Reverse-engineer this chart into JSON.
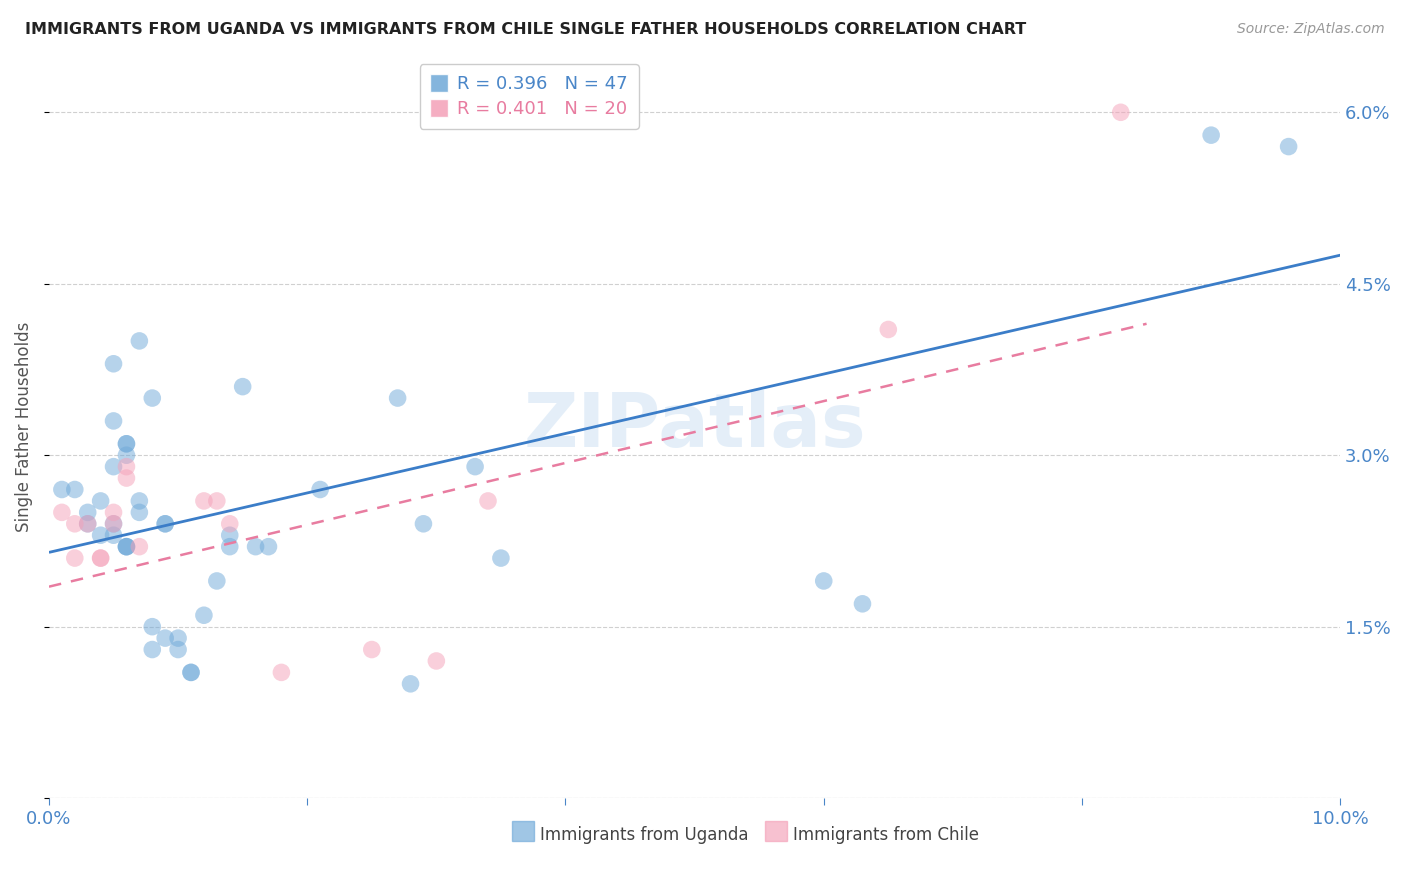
{
  "title": "IMMIGRANTS FROM UGANDA VS IMMIGRANTS FROM CHILE SINGLE FATHER HOUSEHOLDS CORRELATION CHART",
  "source": "Source: ZipAtlas.com",
  "ylabel": "Single Father Households",
  "xlim": [
    0.0,
    0.1
  ],
  "ylim": [
    0.0,
    0.065
  ],
  "xticks": [
    0.0,
    0.02,
    0.04,
    0.06,
    0.08,
    0.1
  ],
  "yticks": [
    0.0,
    0.015,
    0.03,
    0.045,
    0.06
  ],
  "watermark": "ZIPatlas",
  "uganda_color": "#6ea8d8",
  "chile_color": "#f4a0b8",
  "uganda_scatter": [
    [
      0.001,
      0.027
    ],
    [
      0.002,
      0.027
    ],
    [
      0.003,
      0.024
    ],
    [
      0.003,
      0.025
    ],
    [
      0.004,
      0.026
    ],
    [
      0.004,
      0.023
    ],
    [
      0.005,
      0.023
    ],
    [
      0.005,
      0.024
    ],
    [
      0.005,
      0.029
    ],
    [
      0.005,
      0.033
    ],
    [
      0.005,
      0.038
    ],
    [
      0.006,
      0.022
    ],
    [
      0.006,
      0.022
    ],
    [
      0.006,
      0.022
    ],
    [
      0.006,
      0.03
    ],
    [
      0.006,
      0.031
    ],
    [
      0.006,
      0.031
    ],
    [
      0.007,
      0.026
    ],
    [
      0.007,
      0.04
    ],
    [
      0.007,
      0.025
    ],
    [
      0.008,
      0.013
    ],
    [
      0.008,
      0.015
    ],
    [
      0.008,
      0.035
    ],
    [
      0.009,
      0.014
    ],
    [
      0.009,
      0.024
    ],
    [
      0.009,
      0.024
    ],
    [
      0.01,
      0.013
    ],
    [
      0.01,
      0.014
    ],
    [
      0.011,
      0.011
    ],
    [
      0.011,
      0.011
    ],
    [
      0.012,
      0.016
    ],
    [
      0.013,
      0.019
    ],
    [
      0.014,
      0.022
    ],
    [
      0.014,
      0.023
    ],
    [
      0.015,
      0.036
    ],
    [
      0.016,
      0.022
    ],
    [
      0.017,
      0.022
    ],
    [
      0.021,
      0.027
    ],
    [
      0.027,
      0.035
    ],
    [
      0.028,
      0.01
    ],
    [
      0.029,
      0.024
    ],
    [
      0.033,
      0.029
    ],
    [
      0.035,
      0.021
    ],
    [
      0.06,
      0.019
    ],
    [
      0.063,
      0.017
    ],
    [
      0.09,
      0.058
    ],
    [
      0.096,
      0.057
    ]
  ],
  "chile_scatter": [
    [
      0.001,
      0.025
    ],
    [
      0.002,
      0.021
    ],
    [
      0.002,
      0.024
    ],
    [
      0.003,
      0.024
    ],
    [
      0.004,
      0.021
    ],
    [
      0.004,
      0.021
    ],
    [
      0.005,
      0.025
    ],
    [
      0.005,
      0.024
    ],
    [
      0.006,
      0.028
    ],
    [
      0.006,
      0.029
    ],
    [
      0.007,
      0.022
    ],
    [
      0.012,
      0.026
    ],
    [
      0.013,
      0.026
    ],
    [
      0.014,
      0.024
    ],
    [
      0.018,
      0.011
    ],
    [
      0.025,
      0.013
    ],
    [
      0.03,
      0.012
    ],
    [
      0.034,
      0.026
    ],
    [
      0.065,
      0.041
    ],
    [
      0.083,
      0.06
    ]
  ],
  "uganda_line_x": [
    0.0,
    0.1
  ],
  "uganda_line_y": [
    0.0215,
    0.0475
  ],
  "chile_line_x": [
    0.0,
    0.085
  ],
  "chile_line_y": [
    0.0185,
    0.0415
  ],
  "background_color": "#ffffff",
  "grid_color": "#d0d0d0",
  "title_color": "#222222",
  "tick_color": "#4a86c8",
  "source_color": "#999999"
}
